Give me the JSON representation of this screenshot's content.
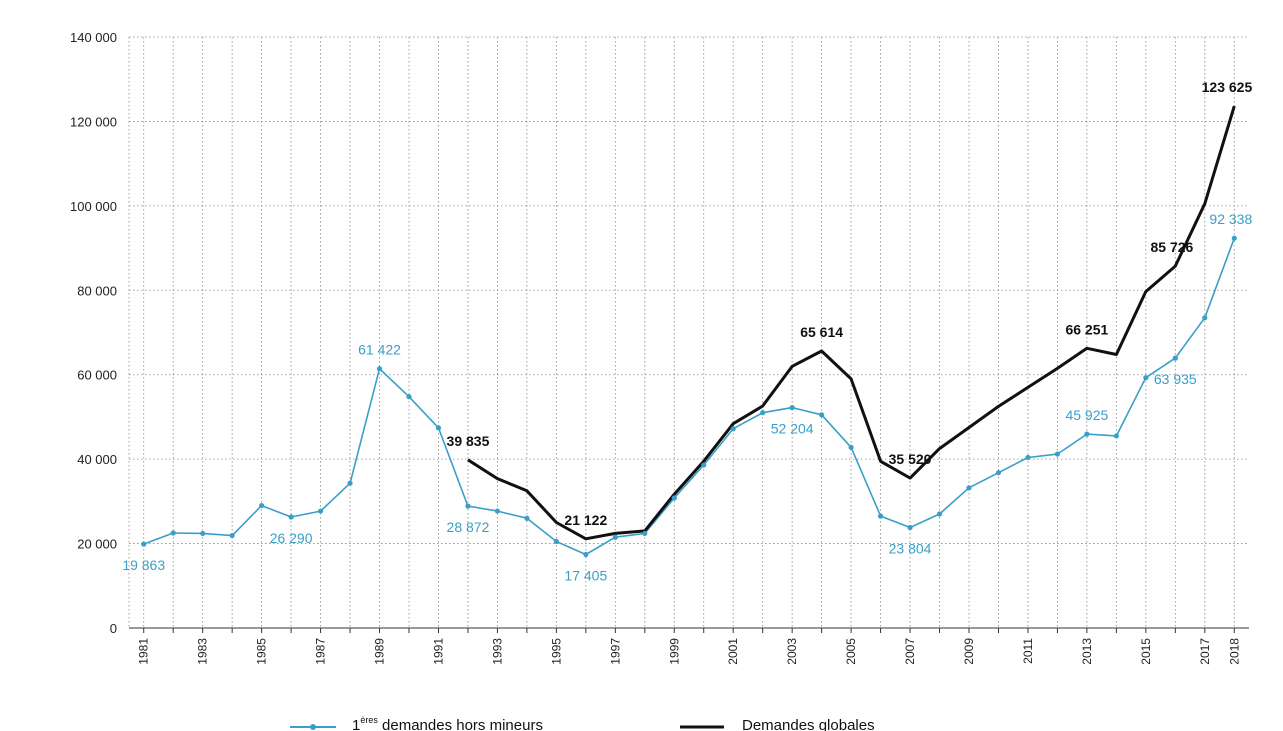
{
  "chart_data": {
    "type": "line",
    "title": "",
    "xlabel": "",
    "ylabel": "",
    "ylim": [
      0,
      140000
    ],
    "grid": true,
    "legend_position": "bottom",
    "y_ticks": [
      "0",
      "20 000",
      "40 000",
      "60 000",
      "80 000",
      "100 000",
      "120 000",
      "140 000"
    ],
    "x_ticks": [
      "1981",
      "1983",
      "1985",
      "1987",
      "1989",
      "1991",
      "1993",
      "1995",
      "1997",
      "1999",
      "2001",
      "2003",
      "2005",
      "2007",
      "2009",
      "2011",
      "2013",
      "2015",
      "2017",
      "2018"
    ],
    "x": [
      1981,
      1982,
      1983,
      1984,
      1985,
      1986,
      1987,
      1988,
      1989,
      1990,
      1991,
      1992,
      1993,
      1994,
      1995,
      1996,
      1997,
      1998,
      1999,
      2000,
      2001,
      2002,
      2003,
      2004,
      2005,
      2006,
      2007,
      2008,
      2009,
      2010,
      2011,
      2012,
      2013,
      2014,
      2015,
      2016,
      2017,
      2018
    ],
    "series": [
      {
        "name_prefix": "1",
        "name_sup": "ères",
        "name_suffix": " demandes hors mineurs",
        "color": "#3a9fc8",
        "values": [
          19863,
          22500,
          22400,
          21900,
          29000,
          26290,
          27700,
          34300,
          61422,
          54800,
          47400,
          28872,
          27700,
          26000,
          20500,
          17405,
          21500,
          22400,
          30800,
          38600,
          47200,
          51000,
          52204,
          50500,
          42800,
          26500,
          23804,
          27000,
          33200,
          36800,
          40400,
          41200,
          45925,
          45500,
          59300,
          63935,
          73500,
          92338
        ]
      },
      {
        "name": "Demandes globales",
        "color": "#111111",
        "values": [
          null,
          null,
          null,
          null,
          null,
          null,
          null,
          null,
          null,
          null,
          null,
          39835,
          35400,
          32500,
          25000,
          21122,
          22400,
          23000,
          31700,
          39500,
          48400,
          52600,
          62000,
          65614,
          59000,
          39500,
          35520,
          42500,
          47500,
          52500,
          57000,
          61500,
          66251,
          64800,
          79700,
          85726,
          100500,
          123625
        ]
      }
    ],
    "annotations": [
      {
        "series": 0,
        "x": 1981,
        "text": "19 863",
        "pos": "below"
      },
      {
        "series": 0,
        "x": 1986,
        "text": "26 290",
        "pos": "below"
      },
      {
        "series": 0,
        "x": 1989,
        "text": "61 422",
        "pos": "above"
      },
      {
        "series": 0,
        "x": 1992,
        "text": "28 872",
        "pos": "below"
      },
      {
        "series": 0,
        "x": 1996,
        "text": "17 405",
        "pos": "below"
      },
      {
        "series": 0,
        "x": 2003,
        "text": "52 204",
        "pos": "below"
      },
      {
        "series": 0,
        "x": 2007,
        "text": "23 804",
        "pos": "below"
      },
      {
        "series": 0,
        "x": 2013,
        "text": "45 925",
        "pos": "above"
      },
      {
        "series": 0,
        "x": 2016,
        "text": "63 935",
        "pos": "below"
      },
      {
        "series": 0,
        "x": 2018,
        "text": "92 338",
        "pos": "above-left"
      },
      {
        "series": 1,
        "x": 1992,
        "text": "39 835",
        "pos": "above"
      },
      {
        "series": 1,
        "x": 1996,
        "text": "21 122",
        "pos": "above"
      },
      {
        "series": 1,
        "x": 2004,
        "text": "65 614",
        "pos": "above"
      },
      {
        "series": 1,
        "x": 2007,
        "text": "35 520",
        "pos": "above"
      },
      {
        "series": 1,
        "x": 2013,
        "text": "66 251",
        "pos": "above"
      },
      {
        "series": 1,
        "x": 2016,
        "text": "85 726",
        "pos": "above-left"
      },
      {
        "series": 1,
        "x": 2018,
        "text": "123 625",
        "pos": "above-left"
      }
    ]
  }
}
